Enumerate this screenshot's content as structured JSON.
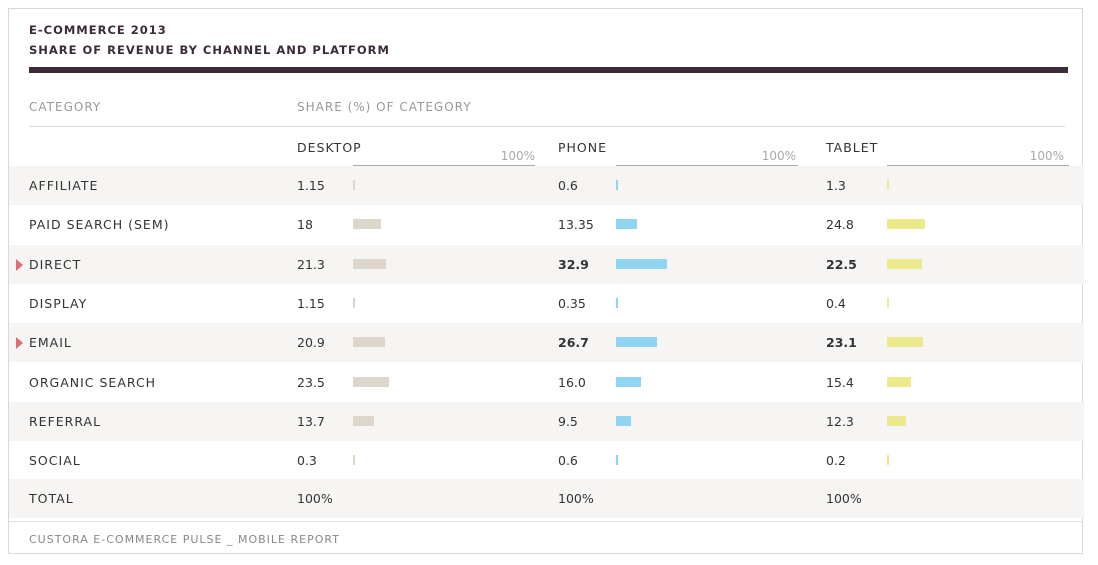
{
  "header": {
    "title_line1": "E-COMMERCE 2013",
    "title_line2": "SHARE OF REVENUE BY CHANNEL AND PLATFORM"
  },
  "columns": {
    "category_label": "CATEGORY",
    "share_label": "SHARE (%) OF CATEGORY",
    "platforms": [
      "DESKTOP",
      "PHONE",
      "TABLET"
    ],
    "scale_max_label": "100%"
  },
  "colors": {
    "desktop": "#dcd6cb",
    "phone": "#8fd4f0",
    "tablet": "#ece98c",
    "marker": "#e06c7a",
    "title_rule": "#3d2b3c"
  },
  "chart_data": {
    "type": "bar",
    "title": "SHARE OF REVENUE BY CHANNEL AND PLATFORM",
    "categories": [
      "AFFILIATE",
      "PAID SEARCH (SEM)",
      "DIRECT",
      "DISPLAY",
      "EMAIL",
      "ORGANIC SEARCH",
      "REFERRAL",
      "SOCIAL"
    ],
    "series": [
      {
        "name": "DESKTOP",
        "values": [
          1.15,
          18,
          21.3,
          1.15,
          20.9,
          23.5,
          13.7,
          0.3
        ],
        "labels": [
          "1.15",
          "18",
          "21.3",
          "1.15",
          "20.9",
          "23.5",
          "13.7",
          "0.3"
        ]
      },
      {
        "name": "PHONE",
        "values": [
          0.6,
          13.35,
          32.9,
          0.35,
          26.7,
          16.0,
          9.5,
          0.6
        ],
        "labels": [
          "0.6",
          "13.35",
          "32.9",
          "0.35",
          "26.7",
          "16.0",
          "9.5",
          "0.6"
        ]
      },
      {
        "name": "TABLET",
        "values": [
          1.3,
          24.8,
          22.5,
          0.4,
          23.1,
          15.4,
          12.3,
          0.2
        ],
        "labels": [
          "1.3",
          "24.8",
          "22.5",
          "0.4",
          "23.1",
          "15.4",
          "12.3",
          "0.2"
        ]
      }
    ],
    "highlighted": [
      "DIRECT",
      "EMAIL"
    ],
    "ylim": [
      0,
      100
    ],
    "total": {
      "label": "TOTAL",
      "values": [
        "100%",
        "100%",
        "100%"
      ]
    }
  },
  "footer": {
    "source": "CUSTORA E-COMMERCE PULSE _ MOBILE REPORT"
  }
}
